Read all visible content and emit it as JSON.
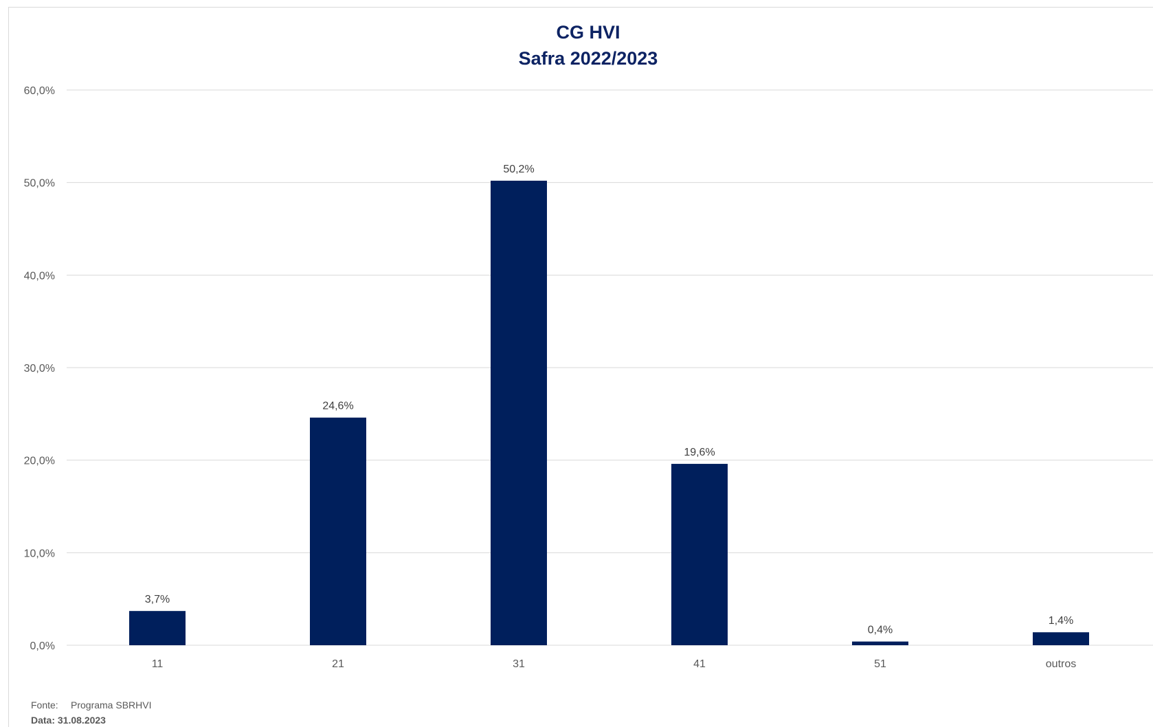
{
  "chart_data": {
    "type": "bar",
    "title": "CG HVI",
    "subtitle": "Safra 2022/2023",
    "categories": [
      "11",
      "21",
      "31",
      "41",
      "51",
      "outros"
    ],
    "values": [
      3.7,
      24.6,
      50.2,
      19.6,
      0.4,
      1.4
    ],
    "value_labels": [
      "3,7%",
      "24,6%",
      "50,2%",
      "19,6%",
      "0,4%",
      "1,4%"
    ],
    "xlabel": "",
    "ylabel": "",
    "ylim": [
      0,
      60
    ],
    "yticks": [
      0,
      10,
      20,
      30,
      40,
      50,
      60
    ],
    "ytick_labels": [
      "0,0%",
      "10,0%",
      "20,0%",
      "30,0%",
      "40,0%",
      "50,0%",
      "60,0%"
    ],
    "grid": true,
    "legend": "none",
    "bar_color": "#001f5c",
    "grid_color": "#d9d9d9"
  },
  "footer": {
    "source_label": "Fonte:",
    "source_value": "Programa SBRHVI",
    "date": "Data: 31.08.2023"
  }
}
